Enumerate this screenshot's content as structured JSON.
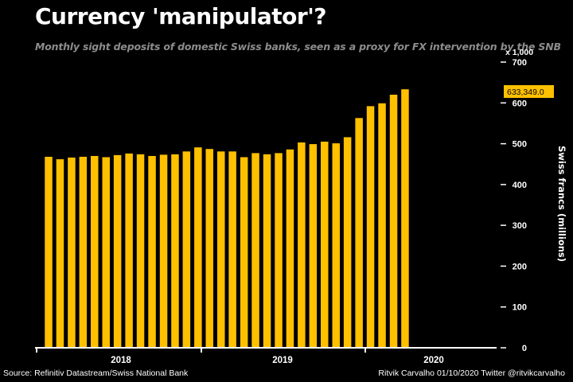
{
  "title": "Currency 'manipulator'?",
  "subtitle": "Monthly sight deposits of domestic Swiss banks, seen as a proxy for FX intervention by the SNB",
  "source": "Source: Refinitiv Datastream/Swiss National Bank",
  "credit": "Ritvik Carvalho 01/10/2020 Twitter @ritvikcarvalho",
  "colors": {
    "background": "#000000",
    "bar": "#FFC000",
    "text": "#FFFFFF",
    "subtitle": "#8C8C8C",
    "callout_bg": "#FFC000",
    "callout_text": "#000000"
  },
  "chart_data": {
    "type": "bar",
    "ylabel": "Swiss francs (millions)",
    "y_unit": "x 1,000",
    "ylim": [
      0,
      700
    ],
    "yticks": [
      0,
      100,
      200,
      300,
      400,
      500,
      600,
      700
    ],
    "year_labels": [
      "2018",
      "2019",
      "2020"
    ],
    "grid": false,
    "callout": "633,349.0",
    "values": [
      468,
      462,
      466,
      468,
      470,
      467,
      472,
      476,
      474,
      470,
      473,
      474,
      481,
      491,
      487,
      481,
      481,
      467,
      477,
      474,
      477,
      486,
      503,
      499,
      505,
      501,
      516,
      563,
      592,
      599,
      620,
      633.349
    ]
  }
}
